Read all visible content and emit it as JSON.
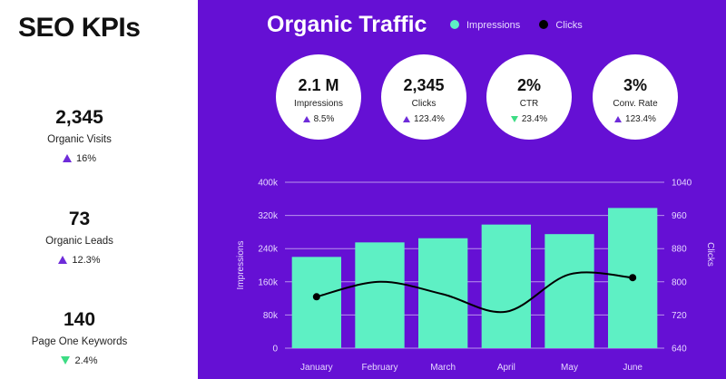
{
  "sidebar": {
    "title": "SEO KPIs",
    "stats": [
      {
        "value": "2,345",
        "label": "Organic Visits",
        "change": "16%",
        "direction": "up"
      },
      {
        "value": "73",
        "label": "Organic Leads",
        "change": "12.3%",
        "direction": "up"
      },
      {
        "value": "140",
        "label": "Page One Keywords",
        "change": "2.4%",
        "direction": "down"
      }
    ]
  },
  "header": {
    "title": "Organic Traffic",
    "legend": [
      {
        "label": "Impressions",
        "color": "#5ef0c4"
      },
      {
        "label": "Clicks",
        "color": "#000000"
      }
    ]
  },
  "metrics": [
    {
      "value": "2.1 M",
      "label": "Impressions",
      "change": "8.5%",
      "direction": "up"
    },
    {
      "value": "2,345",
      "label": "Clicks",
      "change": "123.4%",
      "direction": "up"
    },
    {
      "value": "2%",
      "label": "CTR",
      "change": "23.4%",
      "direction": "down"
    },
    {
      "value": "3%",
      "label": "Conv. Rate",
      "change": "123.4%",
      "direction": "up"
    }
  ],
  "colors": {
    "panel_bg": "#6510d4",
    "bar": "#5ef0c4",
    "line": "#000000",
    "up": "#6e2bd9",
    "down": "#3ddc84"
  },
  "chart_data": {
    "type": "bar",
    "title": "Organic Traffic",
    "categories": [
      "January",
      "February",
      "March",
      "April",
      "May",
      "June"
    ],
    "series": [
      {
        "name": "Impressions",
        "type": "bar",
        "axis": "left",
        "values": [
          220000,
          255000,
          265000,
          298000,
          275000,
          338000
        ]
      },
      {
        "name": "Clicks",
        "type": "line",
        "axis": "right",
        "values": [
          764,
          800,
          770,
          728,
          818,
          810
        ]
      }
    ],
    "ylabel": "Impressions",
    "y2label": "Clicks",
    "ylim": [
      0,
      400000
    ],
    "y2lim": [
      640,
      1040
    ],
    "yticks": [
      "0",
      "80k",
      "160k",
      "240k",
      "320k",
      "400k"
    ],
    "y2ticks": [
      "640",
      "720",
      "800",
      "880",
      "960",
      "1040"
    ]
  }
}
